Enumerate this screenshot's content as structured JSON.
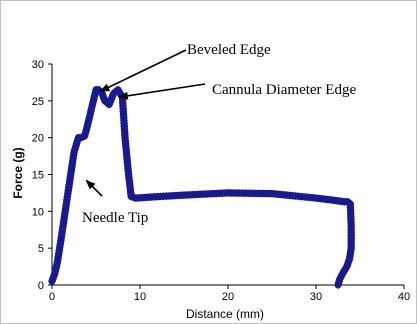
{
  "chart_data": {
    "type": "line",
    "title": "",
    "xlabel": "Distance (mm)",
    "ylabel": "Force (g)",
    "xlim": [
      0,
      40
    ],
    "ylim": [
      0,
      30
    ],
    "xticks": [
      "0",
      "10",
      "20",
      "30",
      "40"
    ],
    "yticks": [
      "0",
      "5",
      "10",
      "15",
      "20",
      "25",
      "30"
    ],
    "grid": false,
    "legend": "none",
    "series": [
      {
        "color": "#1a1a8c",
        "marker": "diamond",
        "x": [
          0,
          0.3,
          0.6,
          1.0,
          1.5,
          2.0,
          2.5,
          3.0,
          3.3,
          3.7,
          4.0,
          4.5,
          5.0,
          5.3,
          5.7,
          6.0,
          6.5,
          7.0,
          7.5,
          8.0,
          8.3,
          8.7,
          9.0,
          9.5,
          12,
          15,
          20,
          25,
          30,
          32,
          33.2,
          33.6,
          33.9,
          34.0,
          34.0,
          33.8,
          33.5,
          33.0,
          32.7,
          32.5
        ],
        "y": [
          0.5,
          1.5,
          3.0,
          6.0,
          10.0,
          14.0,
          18.0,
          20.0,
          20.0,
          20.2,
          21.5,
          24.0,
          26.5,
          26.5,
          26.0,
          25.0,
          24.5,
          26.0,
          26.5,
          25.5,
          20.0,
          15.0,
          12.0,
          11.8,
          12.0,
          12.2,
          12.5,
          12.4,
          11.8,
          11.5,
          11.3,
          11.3,
          11.0,
          8.0,
          5.0,
          3.5,
          2.5,
          1.5,
          0.8,
          0.0
        ]
      }
    ],
    "annotations": [
      {
        "text": "Beveled Edge",
        "point": [
          5.5,
          26.3
        ]
      },
      {
        "text": "Cannula Diameter Edge",
        "point": [
          7.6,
          25.5
        ]
      },
      {
        "text": "Needle Tip",
        "point": [
          3.9,
          14.2
        ]
      }
    ]
  }
}
